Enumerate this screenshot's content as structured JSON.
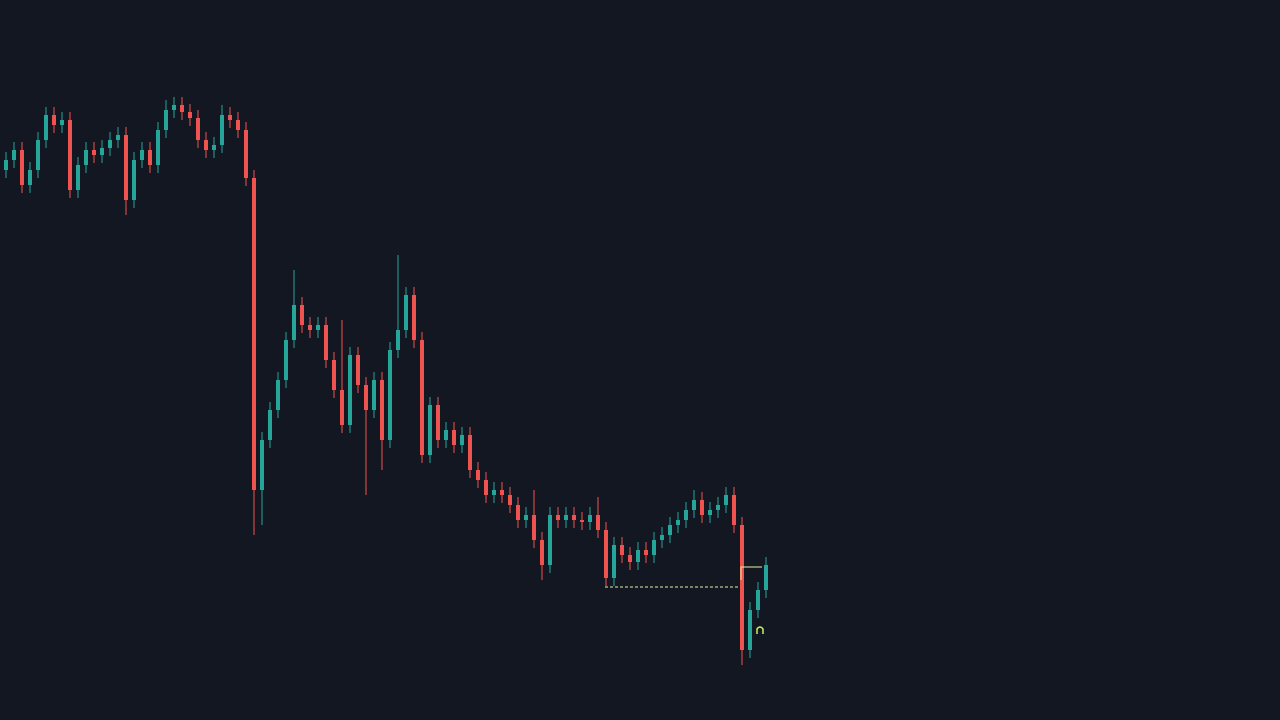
{
  "chart_data": {
    "type": "candlestick",
    "up_color": "#26a69a",
    "down_color": "#ef5350",
    "ylim": [
      0,
      720
    ],
    "open": [
      550,
      560,
      570,
      535,
      550,
      580,
      605,
      595,
      600,
      530,
      555,
      570,
      565,
      572,
      580,
      585,
      520,
      560,
      570,
      555,
      590,
      610,
      615,
      608,
      602,
      580,
      570,
      575,
      605,
      600,
      590,
      542,
      230,
      280,
      310,
      340,
      380,
      415,
      395,
      390,
      395,
      360,
      330,
      295,
      365,
      335,
      310,
      340,
      280,
      370,
      390,
      425,
      380,
      265,
      315,
      280,
      290,
      275,
      285,
      250,
      240,
      225,
      230,
      225,
      215,
      200,
      205,
      180,
      155,
      205,
      200,
      205,
      200,
      198,
      205,
      190,
      142,
      175,
      165,
      158,
      170,
      165,
      180,
      185,
      195,
      200,
      210,
      220,
      205,
      210,
      215,
      225,
      195,
      70,
      110,
      130
    ],
    "high": [
      568,
      578,
      578,
      558,
      588,
      613,
      613,
      608,
      608,
      563,
      578,
      578,
      580,
      588,
      593,
      593,
      568,
      578,
      578,
      598,
      620,
      623,
      623,
      616,
      610,
      588,
      583,
      615,
      613,
      608,
      598,
      550,
      288,
      318,
      348,
      388,
      450,
      423,
      403,
      403,
      403,
      368,
      400,
      373,
      373,
      343,
      348,
      348,
      378,
      465,
      433,
      433,
      388,
      323,
      323,
      298,
      298,
      293,
      293,
      258,
      248,
      238,
      238,
      233,
      223,
      213,
      230,
      188,
      213,
      213,
      213,
      213,
      208,
      213,
      223,
      198,
      183,
      183,
      173,
      178,
      178,
      188,
      193,
      203,
      208,
      218,
      230,
      228,
      218,
      223,
      233,
      233,
      203,
      118,
      138,
      163
    ],
    "low": [
      542,
      552,
      527,
      527,
      542,
      572,
      587,
      587,
      522,
      522,
      547,
      557,
      557,
      564,
      572,
      505,
      512,
      552,
      547,
      547,
      582,
      602,
      600,
      594,
      572,
      562,
      562,
      567,
      592,
      582,
      534,
      185,
      195,
      272,
      302,
      332,
      372,
      387,
      382,
      382,
      352,
      322,
      287,
      287,
      327,
      225,
      302,
      250,
      272,
      362,
      382,
      372,
      257,
      257,
      272,
      272,
      267,
      267,
      242,
      232,
      217,
      217,
      217,
      207,
      192,
      192,
      172,
      140,
      147,
      192,
      192,
      192,
      190,
      190,
      182,
      134,
      134,
      157,
      150,
      150,
      157,
      157,
      172,
      177,
      187,
      192,
      202,
      197,
      197,
      202,
      207,
      187,
      55,
      62,
      102,
      122
    ],
    "close": [
      560,
      570,
      535,
      550,
      580,
      605,
      595,
      600,
      530,
      555,
      570,
      565,
      572,
      580,
      585,
      520,
      560,
      570,
      555,
      590,
      610,
      615,
      608,
      602,
      580,
      570,
      575,
      605,
      600,
      590,
      542,
      230,
      280,
      310,
      340,
      380,
      415,
      395,
      390,
      395,
      360,
      330,
      295,
      365,
      335,
      310,
      340,
      280,
      370,
      390,
      425,
      380,
      265,
      315,
      280,
      290,
      275,
      285,
      250,
      240,
      225,
      230,
      225,
      215,
      200,
      205,
      180,
      155,
      205,
      200,
      205,
      200,
      198,
      205,
      190,
      142,
      175,
      165,
      158,
      170,
      165,
      180,
      185,
      195,
      200,
      210,
      220,
      205,
      210,
      215,
      225,
      195,
      70,
      110,
      130,
      155
    ]
  }
}
